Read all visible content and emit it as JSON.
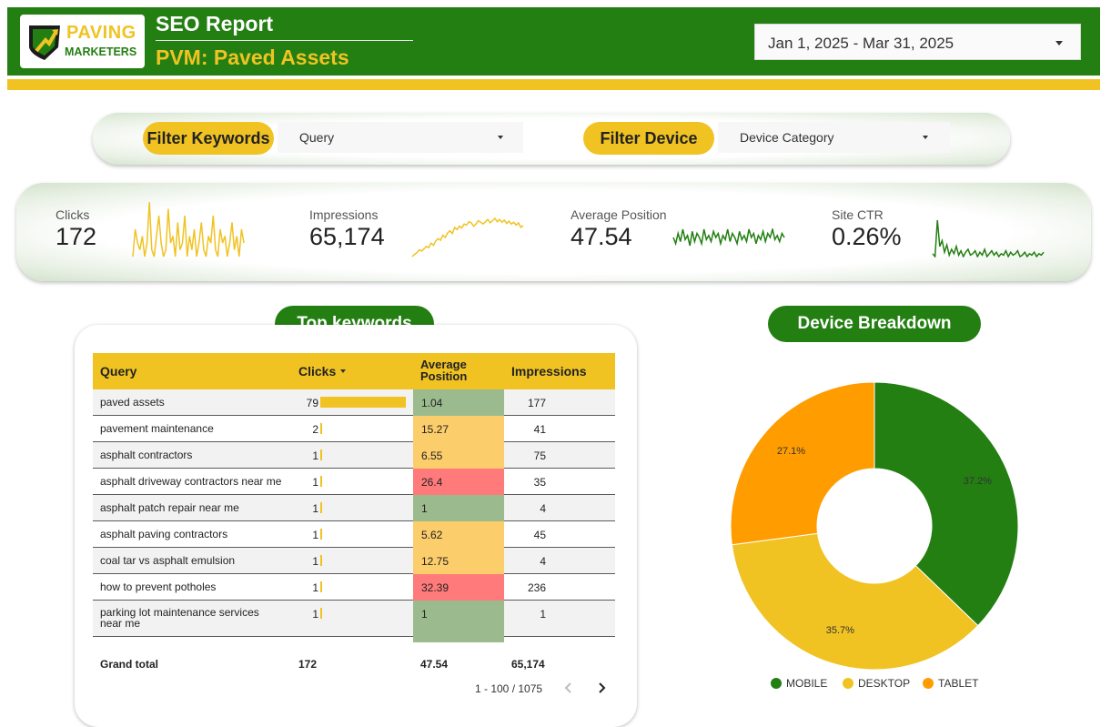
{
  "header": {
    "logo": {
      "line1": "PAVING",
      "line2": "MARKETERS"
    },
    "title": "SEO Report",
    "subtitle": "PVM: Paved Assets",
    "date_range": "Jan 1, 2025 - Mar 31, 2025"
  },
  "filters": {
    "keyword_label": "Filter Keywords",
    "keyword_select": "Query",
    "device_label": "Filter Device",
    "device_select": "Device Category"
  },
  "kpis": [
    {
      "label": "Clicks",
      "value": "172"
    },
    {
      "label": "Impressions",
      "value": "65,174"
    },
    {
      "label": "Average Position",
      "value": "47.54"
    },
    {
      "label": "Site CTR",
      "value": "0.26%"
    }
  ],
  "colors": {
    "brand_green": "#237f12",
    "brand_yellow": "#f0c323",
    "tablet_orange": "#ff9c00",
    "pos_good": "#9bbb8f",
    "pos_mid": "#fccd6b",
    "pos_bad": "#ff7a7a"
  },
  "top_keywords": {
    "section_title": "Top keywords",
    "columns": [
      "Query",
      "Clicks",
      "Average Position",
      "Impressions"
    ],
    "rows": [
      {
        "query": "paved assets",
        "clicks": "79",
        "position": "1.04",
        "impressions": "177",
        "pos_level": "good"
      },
      {
        "query": "pavement maintenance",
        "clicks": "2",
        "position": "15.27",
        "impressions": "41",
        "pos_level": "mid"
      },
      {
        "query": "asphalt contractors",
        "clicks": "1",
        "position": "6.55",
        "impressions": "75",
        "pos_level": "mid"
      },
      {
        "query": "asphalt driveway contractors near me",
        "clicks": "1",
        "position": "26.4",
        "impressions": "35",
        "pos_level": "bad"
      },
      {
        "query": "asphalt patch repair near me",
        "clicks": "1",
        "position": "1",
        "impressions": "4",
        "pos_level": "good"
      },
      {
        "query": "asphalt paving contractors",
        "clicks": "1",
        "position": "5.62",
        "impressions": "45",
        "pos_level": "mid"
      },
      {
        "query": "coal tar vs asphalt emulsion",
        "clicks": "1",
        "position": "12.75",
        "impressions": "4",
        "pos_level": "mid"
      },
      {
        "query": "how to prevent potholes",
        "clicks": "1",
        "position": "32.39",
        "impressions": "236",
        "pos_level": "bad"
      },
      {
        "query": "parking lot maintenance services near me",
        "clicks": "1",
        "position": "1",
        "impressions": "1",
        "pos_level": "good"
      }
    ],
    "total": {
      "label": "Grand total",
      "clicks": "172",
      "position": "47.54",
      "impressions": "65,174"
    },
    "pagination": "1 - 100 / 1075"
  },
  "device_breakdown": {
    "section_title": "Device Breakdown",
    "legend": [
      "MOBILE",
      "DESKTOP",
      "TABLET"
    ]
  },
  "chart_data": [
    {
      "type": "pie",
      "title": "Device Breakdown",
      "categories": [
        "MOBILE",
        "DESKTOP",
        "TABLET"
      ],
      "values": [
        37.2,
        35.7,
        27.1
      ],
      "labels": [
        "37.2%",
        "35.7%",
        "27.1%"
      ],
      "colors": [
        "#237f12",
        "#f0c323",
        "#ff9c00"
      ],
      "donut": true,
      "legend_position": "bottom"
    },
    {
      "type": "bar",
      "title": "Clicks",
      "categories": [
        "paved assets",
        "pavement maintenance",
        "asphalt contractors",
        "asphalt driveway contractors near me",
        "asphalt patch repair near me",
        "asphalt paving contractors",
        "coal tar vs asphalt emulsion",
        "how to prevent potholes",
        "parking lot maintenance services near me"
      ],
      "values": [
        79,
        2,
        1,
        1,
        1,
        1,
        1,
        1,
        1
      ]
    },
    {
      "type": "line",
      "series": [
        {
          "name": "Clicks",
          "values": [
            0,
            4,
            2,
            1,
            3,
            0,
            2,
            8,
            1,
            0,
            3,
            6,
            2,
            0,
            1,
            7,
            2,
            3,
            0,
            5,
            1,
            2,
            6,
            0,
            3,
            1,
            4,
            0,
            2,
            5,
            1,
            0,
            3,
            2,
            6,
            1,
            0,
            4,
            2,
            3,
            0,
            2,
            5,
            1,
            3,
            0,
            4,
            2
          ]
        },
        {
          "name": "Impressions",
          "values": [
            180,
            220,
            250,
            300,
            280,
            320,
            360,
            340,
            420,
            380,
            460,
            500,
            470,
            560,
            520,
            600,
            640,
            590,
            700,
            660,
            720,
            690,
            760,
            740,
            800,
            780,
            720,
            760,
            820,
            790,
            760,
            800,
            840,
            780,
            820,
            860,
            800,
            840,
            790,
            830,
            770,
            810,
            760,
            790,
            740,
            780,
            700,
            730
          ]
        },
        {
          "name": "Average Position",
          "values": [
            48,
            45,
            50,
            46,
            52,
            47,
            49,
            44,
            51,
            46,
            50,
            48,
            45,
            52,
            47,
            49,
            46,
            51,
            48,
            50,
            45,
            49,
            47,
            52,
            46,
            50,
            48,
            45,
            51,
            47,
            49,
            46,
            52,
            48,
            50,
            45,
            49,
            47,
            51,
            46,
            50,
            48,
            52,
            47,
            49,
            46,
            50,
            48
          ]
        },
        {
          "name": "Site CTR",
          "values": [
            0.3,
            0.1,
            2.6,
            0.8,
            1.2,
            0.4,
            0.9,
            0.2,
            0.6,
            0.3,
            0.8,
            0.2,
            0.5,
            0.1,
            0.4,
            0.6,
            0.2,
            0.3,
            0.5,
            0.1,
            0.4,
            0.2,
            0.6,
            0.1,
            0.3,
            0.5,
            0.2,
            0.4,
            0.1,
            0.3,
            0.2,
            0.5,
            0.1,
            0.4,
            0.2,
            0.3,
            0.5,
            0.1,
            0.2,
            0.4,
            0.1,
            0.3,
            0.2,
            0.4,
            0.1,
            0.3,
            0.2,
            0.4
          ]
        }
      ]
    }
  ]
}
